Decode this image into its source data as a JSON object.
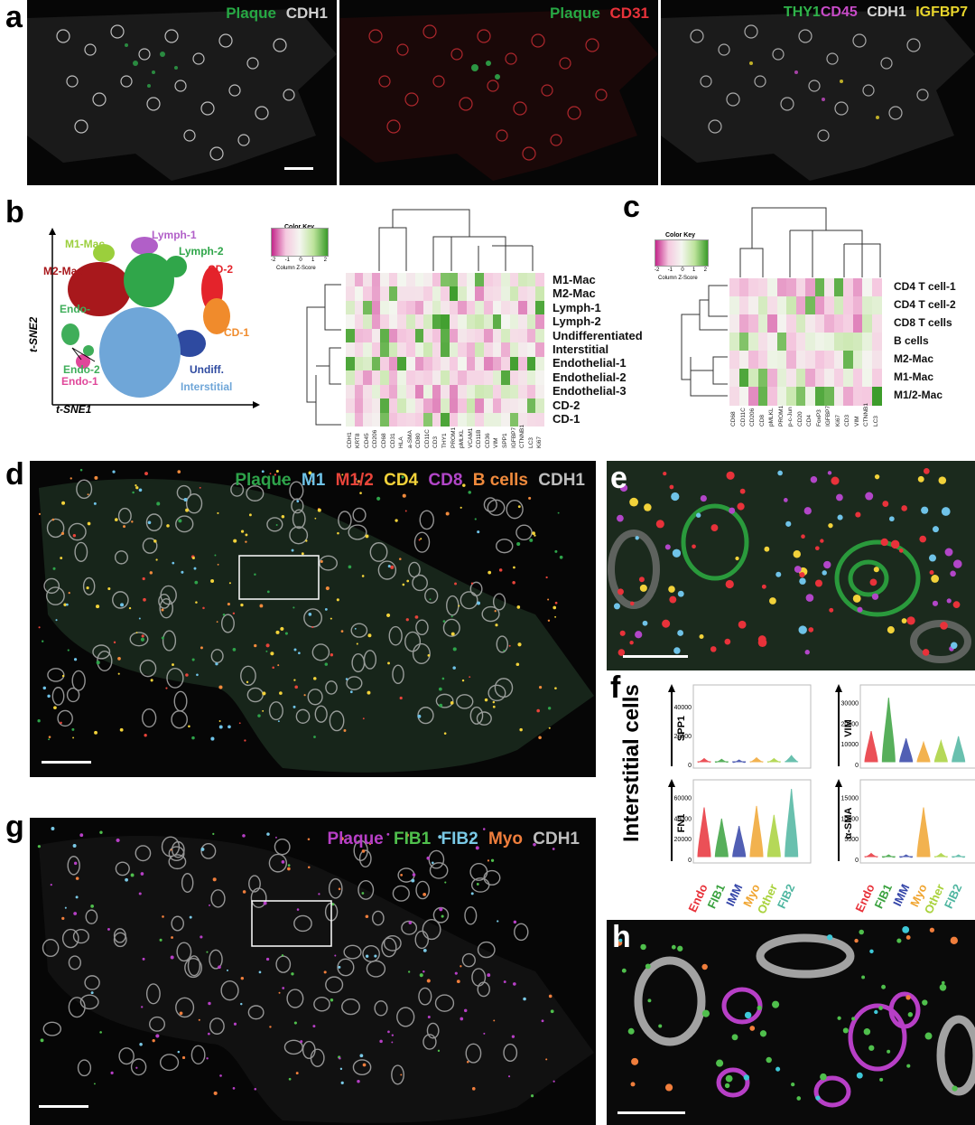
{
  "panel_letters": {
    "a": "a",
    "b": "b",
    "c": "c",
    "d": "d",
    "e": "e",
    "f": "f",
    "g": "g",
    "h": "h"
  },
  "panel_a": {
    "img1": {
      "title1": "Plaque",
      "title2": "CDH1",
      "color1": "#27a844",
      "color2": "#cfcfcf"
    },
    "img2": {
      "title1": "Plaque",
      "title2": "CD31",
      "color1": "#27a844",
      "color2": "#e8323a"
    },
    "img3": {
      "title1": "THY1",
      "title2": "CD45",
      "title3": "CDH1",
      "title4": "IGFBP7",
      "color1": "#2fb34a",
      "color2": "#c84bc8",
      "color3": "#d9d9d9",
      "color4": "#e8d52c"
    }
  },
  "panel_b": {
    "tsne": {
      "xlabel": "t-SNE1",
      "ylabel": "t-SNE2",
      "clusters": [
        {
          "name": "M1-Mac",
          "color": "#9bcf3c"
        },
        {
          "name": "Lymph-1",
          "color": "#b15fc8"
        },
        {
          "name": "Lymph-2",
          "color": "#30a64a"
        },
        {
          "name": "M2-Mac",
          "color": "#a8181c"
        },
        {
          "name": "CD-2",
          "color": "#e4232b"
        },
        {
          "name": "Endo-",
          "color": "#3fae5a"
        },
        {
          "name": "CD-1",
          "color": "#f08b2c"
        },
        {
          "name": "Endo-2",
          "color": "#3fae5a"
        },
        {
          "name": "Endo-1",
          "color": "#e0479a"
        },
        {
          "name": "Undiff.",
          "color": "#2e4aa0"
        },
        {
          "name": "Interstitial",
          "color": "#6fa6d8"
        }
      ]
    },
    "color_key": {
      "title": "Color Key",
      "ticks": [
        "-2",
        "-1",
        "0",
        "1",
        "2"
      ],
      "caption": "Column Z-Score"
    },
    "rows": [
      "M1-Mac",
      "M2-Mac",
      "Lymph-1",
      "Lymph-2",
      "Undifferentiated",
      "Interstitial",
      "Endothelial-1",
      "Endothelial-2",
      "Endothelial-3",
      "CD-2",
      "CD-1"
    ],
    "cols": [
      "CDH1",
      "KRT8",
      "CD45",
      "CD206",
      "CD68",
      "CD31",
      "HLA",
      "a-SMA",
      "CD80",
      "CD11C",
      "CD3",
      "THY1",
      "PROM1",
      "pMLKL",
      "VCAM1",
      "CD11B",
      "CD36",
      "VIM",
      "SPP1",
      "IGFBP7",
      "CTNNB1",
      "LC3",
      "Ki67"
    ]
  },
  "panel_c": {
    "color_key": {
      "title": "Color Key",
      "ticks": [
        "-2",
        "-1",
        "0",
        "1",
        "2"
      ],
      "caption": "Column Z-Score"
    },
    "rows": [
      "CD4 T cell-1",
      "CD4 T cell-2",
      "CD8 T cells",
      "B cells",
      "M2-Mac",
      "M1-Mac",
      "M1/2-Mac"
    ],
    "cols": [
      "CD68",
      "CD11C",
      "CD206",
      "CD8",
      "pMLKL",
      "PROM1",
      "p-c-Jun",
      "CD20",
      "CD4",
      "FoxP3",
      "IGFBP7",
      "Ki67",
      "CD3",
      "VIM",
      "CTNNB1",
      "LC3"
    ]
  },
  "panel_d": {
    "legend": [
      {
        "text": "Plaque",
        "color": "#2ea34a"
      },
      {
        "text": "M1",
        "color": "#6fc3e8"
      },
      {
        "text": "M1/2",
        "color": "#e8443a"
      },
      {
        "text": "CD4",
        "color": "#f2d23a"
      },
      {
        "text": "CD8",
        "color": "#b246c8"
      },
      {
        "text": "B cells",
        "color": "#f08a3c"
      },
      {
        "text": "CDH1",
        "color": "#bdbdbd"
      }
    ]
  },
  "panel_f": {
    "row_label": "Interstitial cells",
    "plots": [
      {
        "ylabel": "SPP1",
        "ticks": [
          "0",
          "20000",
          "40000"
        ]
      },
      {
        "ylabel": "VIM",
        "ticks": [
          "0",
          "10000",
          "20000",
          "30000"
        ]
      },
      {
        "ylabel": "FN1",
        "ticks": [
          "0",
          "20000",
          "40000",
          "60000"
        ]
      },
      {
        "ylabel": "α-SMA",
        "ticks": [
          "0",
          "5000",
          "10000",
          "15000"
        ]
      }
    ],
    "groups": [
      {
        "name": "Endo",
        "color": "#e8323a"
      },
      {
        "name": "FIB1",
        "color": "#3aa23f"
      },
      {
        "name": "IMM",
        "color": "#3344a8"
      },
      {
        "name": "Myo",
        "color": "#f0a531"
      },
      {
        "name": "Other",
        "color": "#a9d23c"
      },
      {
        "name": "FIB2",
        "color": "#4fb6a0"
      }
    ]
  },
  "panel_g": {
    "legend": [
      {
        "text": "Plaque",
        "color": "#b73fc6"
      },
      {
        "text": "FIB1",
        "color": "#4fbf4c"
      },
      {
        "text": "FIB2",
        "color": "#7ac9e6"
      },
      {
        "text": "Myo",
        "color": "#f07e3c"
      },
      {
        "text": "CDH1",
        "color": "#bdbdbd"
      }
    ]
  }
}
